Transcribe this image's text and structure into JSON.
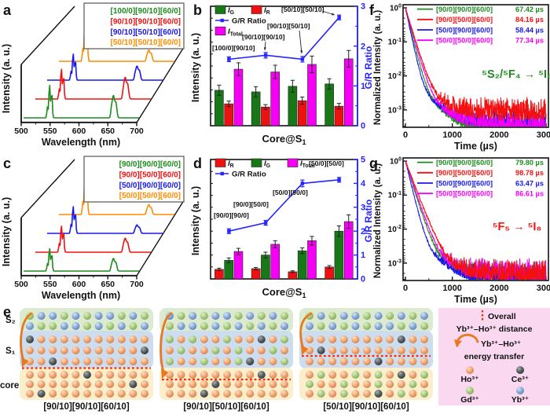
{
  "colors": {
    "green": "#1d8c1d",
    "red": "#f21010",
    "blue": "#1818e8",
    "orange": "#ff8c00",
    "magenta": "#f500f5",
    "bar_green": "#187818",
    "bar_red": "#ee1111",
    "bar_magenta": "#f500f5",
    "ratio_blue": "#2525ff",
    "black": "#111111",
    "sphere_ho": "#f0a372",
    "sphere_ce": "#565b5d",
    "sphere_gd": "#a6c97e",
    "sphere_yb": "#85a7d7",
    "band_s2": "#dceacf",
    "band_s1": "#cdddf0",
    "band_core": "#fbeecb",
    "legend_pink": "#fad9f0",
    "arrow_orange": "#e8791e",
    "dotted_red": "#ff2600"
  },
  "chart_data": [
    {
      "panel": "a",
      "type": "line",
      "subtype": "3d_waterfall_emission_spectra",
      "xlabel": "Wavelength (nm)",
      "ylabel": "Intensity (a. u.)",
      "xlim": [
        500,
        700
      ],
      "xticks": [
        "500",
        "550",
        "600",
        "650",
        "700"
      ],
      "series": [
        {
          "label": "[100/0][90/10][60/0]",
          "color_key": "green",
          "peak545_rel": 45,
          "peak655_rel": 32
        },
        {
          "label": "[90/10][90/10][60/0]",
          "color_key": "red",
          "peak545_rel": 41,
          "peak655_rel": 31
        },
        {
          "label": "[90/10][50/10][60/0]",
          "color_key": "blue",
          "peak545_rel": 36,
          "peak655_rel": 20
        },
        {
          "label": "[50/10][50/10][60/0]",
          "color_key": "orange",
          "peak545_rel": 53,
          "peak655_rel": 16
        }
      ]
    },
    {
      "panel": "b",
      "type": "bar",
      "xlabel": "Core@S_1",
      "ylabel": "Intensity (a. u.)",
      "ylabel_right": "G/R Ratio",
      "right_ylim": [
        0,
        3
      ],
      "right_yticks": [
        "0",
        "1",
        "2",
        "3"
      ],
      "categories": [
        "[100/0][90/10]",
        "[90/10][90/10]",
        "[90/10][50/10]",
        "[50/10][50/10]"
      ],
      "series": [
        {
          "key": "I_G",
          "color_key": "bar_green",
          "values": [
            0.89,
            0.85,
            0.99,
            1.05
          ],
          "errors": [
            0.13,
            0.13,
            0.15,
            0.13
          ]
        },
        {
          "key": "I_R",
          "color_key": "bar_red",
          "values": [
            0.55,
            0.47,
            0.63,
            0.49
          ],
          "errors": [
            0.07,
            0.06,
            0.09,
            0.07
          ]
        },
        {
          "key": "I_Total",
          "color_key": "bar_magenta",
          "values": [
            1.42,
            1.35,
            1.54,
            1.68
          ],
          "errors": [
            0.16,
            0.17,
            0.21,
            0.21
          ]
        }
      ],
      "ratio_line": {
        "key": "G/R Ratio",
        "color_key": "ratio_blue",
        "values": [
          1.67,
          1.77,
          1.67,
          2.72
        ],
        "errors": [
          0.06,
          0.07,
          0.07,
          0.06
        ]
      },
      "legend_rows": [
        [
          "I_G",
          "I_R"
        ],
        [
          "G/R Ratio"
        ],
        [
          "I_Total"
        ]
      ]
    },
    {
      "panel": "c",
      "type": "line",
      "subtype": "3d_waterfall_emission_spectra",
      "xlabel": "Wavelength (nm)",
      "ylabel": "Intensity (a. u.)",
      "xlim": [
        500,
        700
      ],
      "xticks": [
        "500",
        "550",
        "600",
        "650",
        "700"
      ],
      "series": [
        {
          "label": "[90/0][90/0][60/0]",
          "color_key": "green",
          "peak545_rel": 31,
          "peak655_rel": 18
        },
        {
          "label": "[90/0][50/0][60/0]",
          "color_key": "red",
          "peak545_rel": 36,
          "peak655_rel": 20
        },
        {
          "label": "[50/0][90/0][60/0]",
          "color_key": "blue",
          "peak545_rel": 37,
          "peak655_rel": 12
        },
        {
          "label": "[50/0][50/0][60/0]",
          "color_key": "orange",
          "peak545_rel": 53,
          "peak655_rel": 14
        }
      ]
    },
    {
      "panel": "d",
      "type": "bar",
      "xlabel": "Core@S_1",
      "ylabel": "Intensity (a. u.)",
      "ylabel_right": "G/R Ratio",
      "right_ylim": [
        0,
        5
      ],
      "right_yticks": [
        "0",
        "1",
        "2",
        "3",
        "4",
        "5"
      ],
      "categories": [
        "[90/0][90/0]",
        "[90/0][50/0]",
        "[50/0][90/0]",
        "[50/0][50/0]"
      ],
      "series": [
        {
          "key": "I_R",
          "color_key": "bar_red",
          "values": [
            0.4,
            0.43,
            0.3,
            0.5
          ],
          "errors": [
            0.05,
            0.05,
            0.04,
            0.06
          ]
        },
        {
          "key": "I_G",
          "color_key": "bar_green",
          "values": [
            0.78,
            1.0,
            1.18,
            2.0
          ],
          "errors": [
            0.1,
            0.12,
            0.12,
            0.22
          ]
        },
        {
          "key": "I_Total",
          "color_key": "bar_magenta",
          "values": [
            1.15,
            1.45,
            1.6,
            2.4
          ],
          "errors": [
            0.13,
            0.15,
            0.18,
            0.28
          ]
        }
      ],
      "ratio_line": {
        "key": "G/R Ratio",
        "color_key": "ratio_blue",
        "values": [
          2.0,
          2.35,
          4.0,
          4.15
        ],
        "errors": [
          0.1,
          0.1,
          0.14,
          0.1
        ]
      },
      "legend_rows": [
        [
          "I_R",
          "I_G",
          "I_Total"
        ],
        [
          "G/R Ratio"
        ]
      ]
    },
    {
      "panel": "f",
      "type": "line",
      "subtype": "luminescence_decay",
      "xlabel": "Time (µs)",
      "ylabel": "Normalized Intensity (a. u.)",
      "xlim": [
        0,
        3000
      ],
      "xticks": [
        "0",
        "1000",
        "2000",
        "3000"
      ],
      "yticks": [
        "10^0",
        "10^-1",
        "10^-2",
        "10^-3"
      ],
      "annotation": "⁵S₂/⁵F₄ → ⁵I₈",
      "annotation_color_key": "green",
      "series": [
        {
          "label": "[90/0][90/0][60/0]",
          "lifetime_us": 67.42,
          "lifetime_text": "67.42 µs",
          "color_key": "green",
          "noise_floor": 0.00032
        },
        {
          "label": "[90/0][50/0][60/0]",
          "lifetime_us": 84.16,
          "lifetime_text": "84.16 µs",
          "color_key": "red",
          "noise_floor": 0.0014
        },
        {
          "label": "[50/0][90/0][60/0]",
          "lifetime_us": 58.44,
          "lifetime_text": "58.44 µs",
          "color_key": "blue",
          "noise_floor": 0.00065
        },
        {
          "label": "[50/0][50/0][60/0]",
          "lifetime_us": 77.34,
          "lifetime_text": "77.34 µs",
          "color_key": "magenta",
          "noise_floor": 0.00055
        }
      ]
    },
    {
      "panel": "g",
      "type": "line",
      "subtype": "luminescence_decay",
      "xlabel": "Time (µs)",
      "ylabel": "Normalized Intensity (a. u.)",
      "xlim": [
        0,
        3000
      ],
      "xticks": [
        "0",
        "1000",
        "2000",
        "3000"
      ],
      "yticks": [
        "10^0",
        "10^-1",
        "10^-2",
        "10^-3"
      ],
      "annotation": "⁵F₅ → ⁵I₈",
      "annotation_color_key": "red",
      "series": [
        {
          "label": "[90/0][90/0][60/0]",
          "lifetime_us": 79.8,
          "lifetime_text": "79.80 µs",
          "color_key": "green",
          "noise_floor": 0.0007
        },
        {
          "label": "[90/0][50/0][60/0]",
          "lifetime_us": 98.78,
          "lifetime_text": "98.78 µs",
          "color_key": "red",
          "noise_floor": 0.00075
        },
        {
          "label": "[50/0][90/0][60/0]",
          "lifetime_us": 63.47,
          "lifetime_text": "63.47 µs",
          "color_key": "blue",
          "noise_floor": 0.00055
        },
        {
          "label": "[50/0][50/0][60/0]",
          "lifetime_us": 86.61,
          "lifetime_text": "86.61 µs",
          "color_key": "magenta",
          "noise_floor": 0.0008
        }
      ]
    }
  ],
  "panel_e": {
    "label": "e",
    "row_labels": [
      "S₂",
      "S₁",
      "core"
    ],
    "atom_key": {
      "O": "sphere_ho",
      "C": "sphere_ce",
      "G": "sphere_gd",
      "B": "sphere_yb"
    },
    "schematics": [
      {
        "caption": "[90/10][90/10][60/10]",
        "s2": [
          "GBBGBGBBGBG",
          "BGGBBGBGBGB"
        ],
        "s1": [
          "COOOOOOOOOO",
          "OOOOOOOOOOC",
          "OOCOOOOOOOO"
        ],
        "core": [
          "OOOOOCOOOOO",
          "OOOOOOOOOCO",
          "OCOOOOOOOOO"
        ],
        "dotted_after_row": 4
      },
      {
        "caption": "[90/10][50/10][60/10]",
        "s2": [
          "BGBGBBGBGBG",
          "GBBGBGBGBGB"
        ],
        "s1": [
          "GOGOOGOOCOG",
          "OGOOGOGOOGO",
          "GOOGOOGCOOG"
        ],
        "core": [
          "OOOOOOOOCOO",
          "OOOOCOOOOOO",
          "OOOCOOOOOOO"
        ],
        "dotted_after_row": 5
      },
      {
        "caption": "[50/10][90/10][60/10]",
        "s2": [
          "GBGBBGBGBGB",
          "BGBGBGBBGBG"
        ],
        "s1": [
          "OOOOOOOOCOO",
          "OCOOOOOOOOO",
          "OOOOOOCOOOO"
        ],
        "core": [
          "OGOOGOGOCOG",
          "GOOGOOGOOGO",
          "OGOGOOCOGOG"
        ],
        "dotted_after_row": 3
      }
    ],
    "legend": {
      "distance_line1": "Overall",
      "distance_line2": "Yb³⁺–Ho³⁺ distance",
      "transfer_line1": "Yb³⁺–Ho³⁺",
      "transfer_line2": "energy transfer",
      "ions": [
        {
          "label": "Ho³⁺",
          "color_key": "sphere_ho"
        },
        {
          "label": "Ce³⁺",
          "color_key": "sphere_ce"
        },
        {
          "label": "Gd³⁺",
          "color_key": "sphere_gd"
        },
        {
          "label": "Yb³⁺",
          "color_key": "sphere_yb"
        }
      ]
    }
  }
}
